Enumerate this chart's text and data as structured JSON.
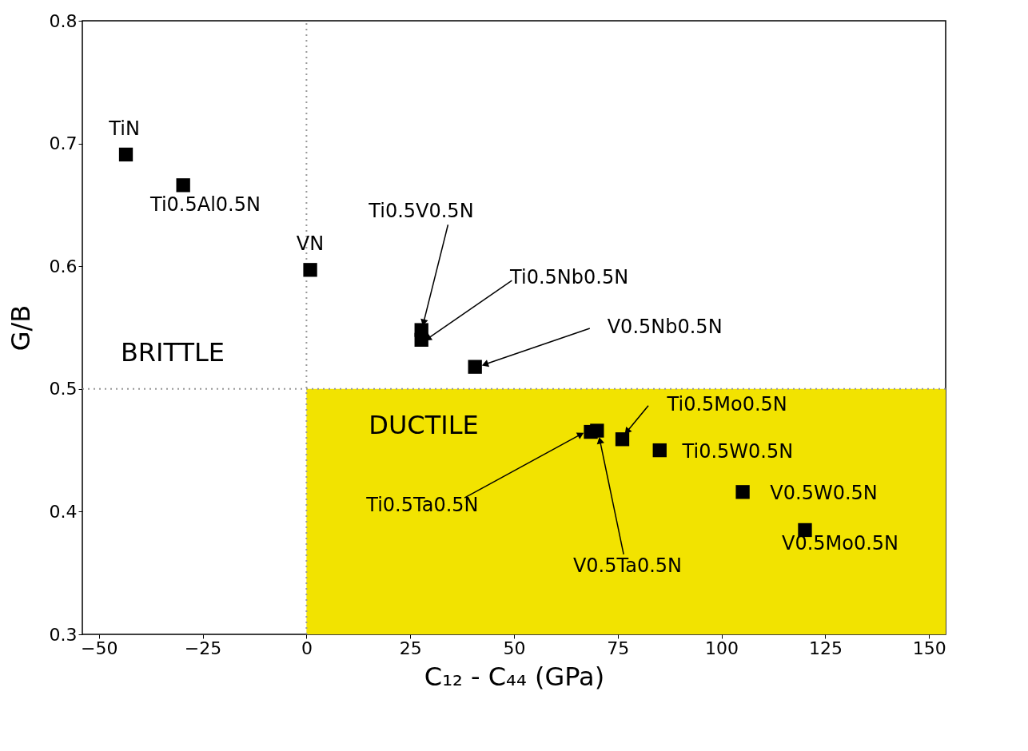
{
  "chart_data": {
    "type": "scatter",
    "xlabel": "C₁₂ - C₄₄  (GPa)",
    "ylabel": "G/B",
    "xlim": [
      -54,
      154
    ],
    "ylim": [
      0.3,
      0.8
    ],
    "xticks": [
      -50,
      -25,
      0,
      25,
      50,
      75,
      100,
      125,
      150
    ],
    "yticks": [
      0.3,
      0.4,
      0.5,
      0.6,
      0.7,
      0.8
    ],
    "grid": false,
    "marker": "square",
    "series": [
      {
        "color": "#000000",
        "x": [
          -43.5,
          -29.7,
          0.9,
          27.7,
          27.7,
          40.6,
          76.1,
          85.1,
          105.1,
          120.1,
          68.5,
          70.0
        ],
        "values": [
          0.691,
          0.666,
          0.597,
          0.548,
          0.54,
          0.518,
          0.459,
          0.45,
          0.416,
          0.385,
          0.465,
          0.466
        ]
      }
    ],
    "ref_lines": [
      {
        "axis": "x",
        "value": 0,
        "color": "#999999",
        "line_style": "dotted"
      },
      {
        "axis": "y",
        "value": 0.5,
        "color": "#999999",
        "line_style": "dotted"
      }
    ],
    "bands": [
      {
        "axis": "x",
        "from": 0,
        "to": 154,
        "label": "DUCTILE",
        "color": "#f2e300"
      }
    ],
    "annotations": [
      "BRITTLE",
      {
        "text": "TiN",
        "x": -43.5,
        "y": 0.691
      },
      {
        "text": "Ti0.5Al0.5N",
        "x": -29.7,
        "y": 0.666
      },
      {
        "text": "VN",
        "x": 0.9,
        "y": 0.597
      },
      {
        "text": "Ti0.5V0.5N",
        "x": 28.2,
        "y": 0.554
      },
      {
        "text": "Ti0.5Nb0.5N",
        "x": 29.2,
        "y": 0.541
      },
      {
        "text": "V0.5Nb0.5N",
        "x": 43.0,
        "y": 0.52
      },
      {
        "text": "Ti0.5Mo0.5N",
        "x": 76.1,
        "y": 0.459
      },
      {
        "text": "Ti0.5W0.5N",
        "x": 85.1,
        "y": 0.45
      },
      {
        "text": "V0.5W0.5N",
        "x": 105.1,
        "y": 0.416
      },
      {
        "text": "V0.5Mo0.5N",
        "x": 120.1,
        "y": 0.385
      },
      {
        "text": "Ti0.5Ta0.5N",
        "x": 66.1,
        "y": 0.463
      },
      {
        "text": "V0.5Ta0.5N",
        "x": 70.7,
        "y": 0.458
      }
    ]
  }
}
